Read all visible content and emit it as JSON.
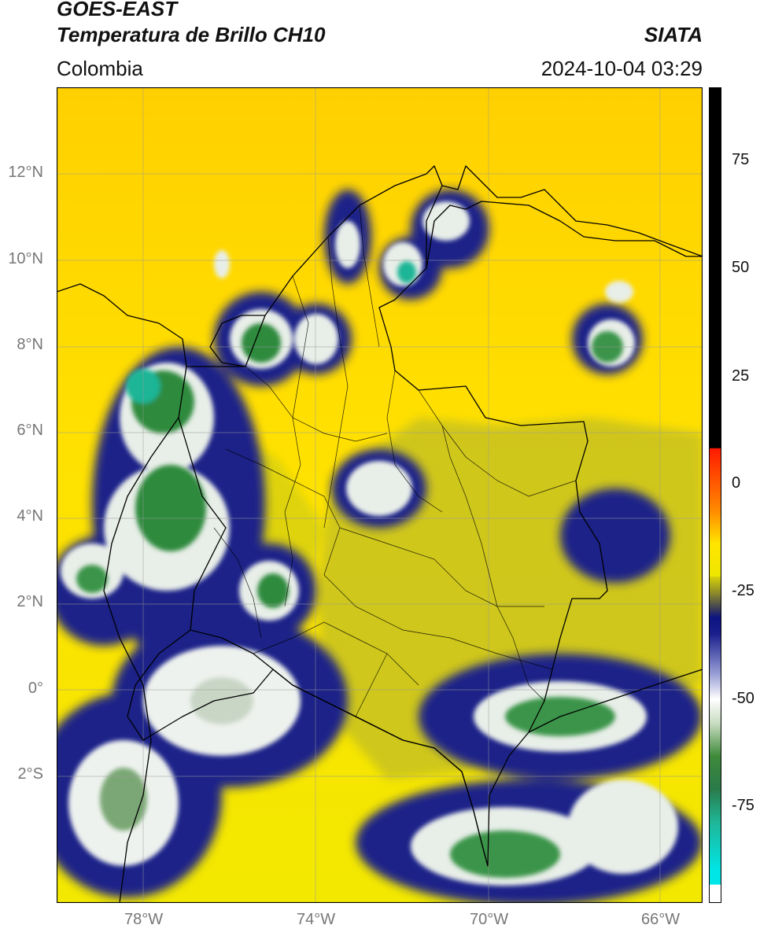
{
  "header": {
    "satellite": "GOES-EAST",
    "product": "Temperatura de Brillo CH10",
    "region": "Colombia",
    "source": "SIATA",
    "datetime": "2024-10-04 03:29"
  },
  "map": {
    "lon_range": [
      -80,
      -65
    ],
    "lat_range": [
      -5,
      14
    ],
    "gridlines": true,
    "lat_ticks": [
      {
        "value": 12,
        "label": "12°N"
      },
      {
        "value": 10,
        "label": "10°N"
      },
      {
        "value": 8,
        "label": "8°N"
      },
      {
        "value": 6,
        "label": "6°N"
      },
      {
        "value": 4,
        "label": "4°N"
      },
      {
        "value": 2,
        "label": "2°N"
      },
      {
        "value": 0,
        "label": "0°"
      },
      {
        "value": -2,
        "label": "2°S"
      }
    ],
    "lon_ticks": [
      {
        "value": -78,
        "label": "78°W"
      },
      {
        "value": -74,
        "label": "74°W"
      },
      {
        "value": -70,
        "label": "70°W"
      },
      {
        "value": -66,
        "label": "66°W"
      }
    ]
  },
  "colorbar": {
    "range": [
      -95,
      90
    ],
    "ticks": [
      {
        "value": 75,
        "label": "75"
      },
      {
        "value": 50,
        "label": "50"
      },
      {
        "value": 25,
        "label": "25"
      },
      {
        "value": 0,
        "label": "0"
      },
      {
        "value": -25,
        "label": "-25"
      },
      {
        "value": -50,
        "label": "-50"
      },
      {
        "value": -75,
        "label": "-75"
      }
    ]
  },
  "colors": {
    "warm_sea": "#ffd400",
    "land_yellow": "#f3e600",
    "olive": "#c2c21a",
    "cold_blue": "#141a82",
    "cloud_white": "#f2f2f2",
    "cold_green": "#2f8a3f",
    "teal": "#1fb596",
    "border": "#000000"
  }
}
